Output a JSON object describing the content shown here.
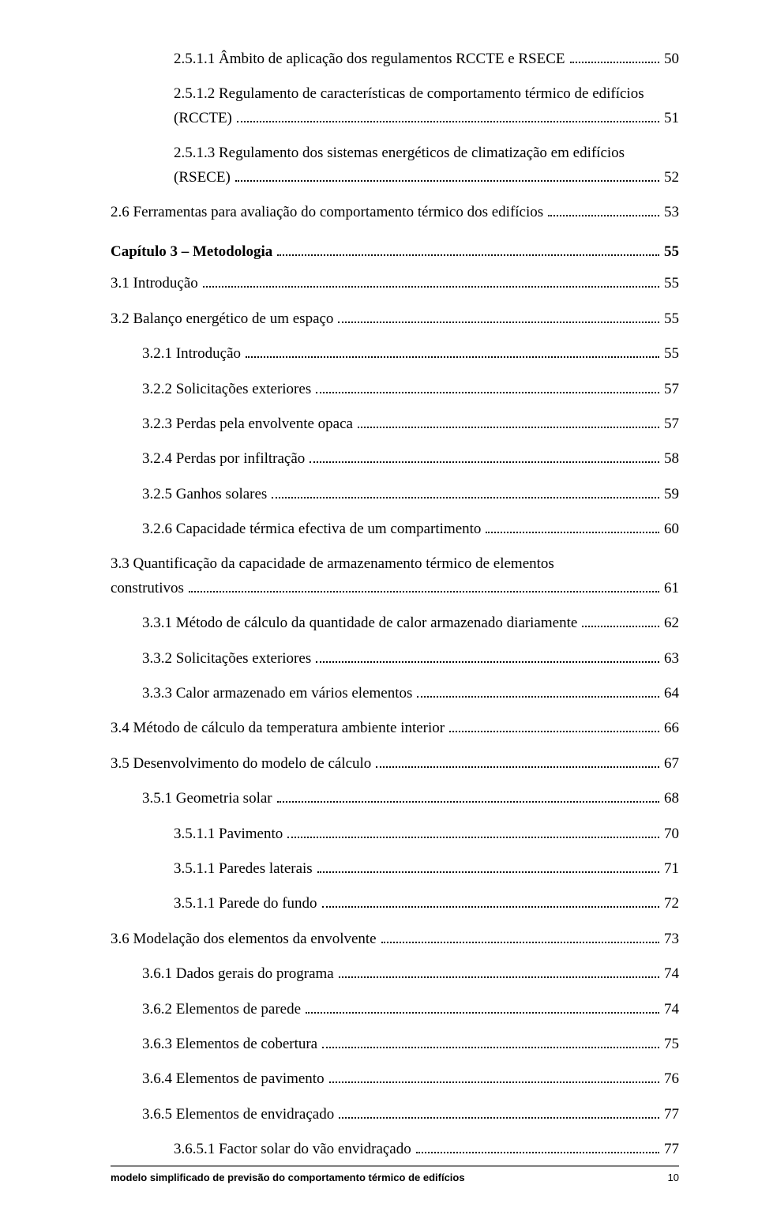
{
  "entries": [
    {
      "indent": 3,
      "text": "2.5.1.1 Âmbito de aplicação dos regulamentos RCCTE e RSECE",
      "page": "50",
      "multiline": false
    },
    {
      "indent": 3,
      "multiline": true,
      "line1": "2.5.1.2 Regulamento de características de comportamento térmico de edifícios",
      "line2_text": "(RCCTE)",
      "page": "51"
    },
    {
      "indent": 3,
      "multiline": true,
      "line1": "2.5.1.3 Regulamento dos sistemas energéticos de climatização em edifícios",
      "line2_text": "(RSECE)",
      "page": "52"
    },
    {
      "indent": 1,
      "text": "2.6 Ferramentas para avaliação do comportamento térmico dos edifícios",
      "page": "53",
      "multiline": false
    }
  ],
  "chapter_heading": {
    "text": "Capítulo 3 – Metodologia",
    "page": "55"
  },
  "chapter_entries": [
    {
      "indent": 1,
      "text": "3.1 Introdução",
      "page": "55"
    },
    {
      "indent": 1,
      "text": "3.2 Balanço energético de um espaço",
      "page": "55"
    },
    {
      "indent": 2,
      "text": "3.2.1 Introdução",
      "page": "55"
    },
    {
      "indent": 2,
      "text": "3.2.2 Solicitações exteriores",
      "page": "57"
    },
    {
      "indent": 2,
      "text": "3.2.3 Perdas pela envolvente opaca",
      "page": "57"
    },
    {
      "indent": 2,
      "text": "3.2.4 Perdas por infiltração",
      "page": "58"
    },
    {
      "indent": 2,
      "text": "3.2.5 Ganhos solares",
      "page": "59"
    },
    {
      "indent": 2,
      "text": "3.2.6 Capacidade térmica efectiva de um compartimento",
      "page": "60"
    },
    {
      "indent": 1,
      "multiline": true,
      "line1": "3.3 Quantificação da capacidade de armazenamento térmico de elementos",
      "line2_text": "construtivos",
      "page": "61"
    },
    {
      "indent": 2,
      "text": "3.3.1 Método de cálculo da quantidade de calor armazenado diariamente",
      "page": "62"
    },
    {
      "indent": 2,
      "text": "3.3.2 Solicitações exteriores",
      "page": "63"
    },
    {
      "indent": 2,
      "text": "3.3.3 Calor armazenado em vários elementos",
      "page": "64"
    },
    {
      "indent": 1,
      "text": "3.4 Método de cálculo da temperatura ambiente interior",
      "page": "66"
    },
    {
      "indent": 1,
      "text": "3.5 Desenvolvimento do modelo de cálculo",
      "page": "67"
    },
    {
      "indent": 2,
      "text": "3.5.1 Geometria solar",
      "page": "68"
    },
    {
      "indent": 3,
      "text": "3.5.1.1 Pavimento",
      "page": "70"
    },
    {
      "indent": 3,
      "text": "3.5.1.1 Paredes laterais",
      "page": "71"
    },
    {
      "indent": 3,
      "text": "3.5.1.1 Parede do fundo",
      "page": "72"
    },
    {
      "indent": 1,
      "text": "3.6 Modelação dos elementos da envolvente",
      "page": "73"
    },
    {
      "indent": 2,
      "text": "3.6.1 Dados gerais do programa",
      "page": "74"
    },
    {
      "indent": 2,
      "text": "3.6.2 Elementos de parede",
      "page": "74"
    },
    {
      "indent": 2,
      "text": "3.6.3 Elementos de cobertura",
      "page": "75"
    },
    {
      "indent": 2,
      "text": "3.6.4 Elementos de pavimento",
      "page": "76"
    },
    {
      "indent": 2,
      "text": "3.6.5 Elementos de envidraçado",
      "page": "77"
    },
    {
      "indent": 3,
      "text": "3.6.5.1 Factor solar do vão envidraçado",
      "page": "77"
    }
  ],
  "footer": {
    "title": "modelo simplificado de previsão do comportamento térmico de edifícios",
    "page": "10"
  }
}
